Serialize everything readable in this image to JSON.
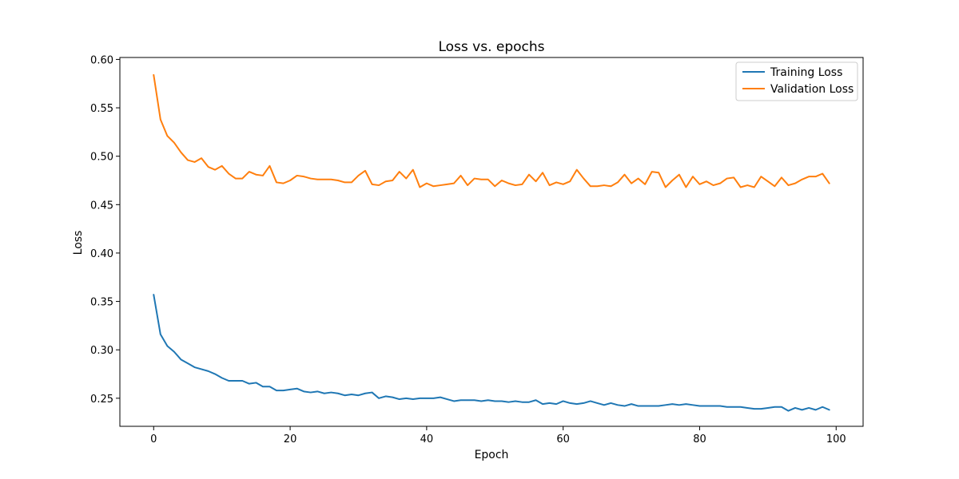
{
  "chart_data": {
    "type": "line",
    "title": "Loss vs. epochs",
    "xlabel": "Epoch",
    "ylabel": "Loss",
    "xlim": [
      -4.95,
      103.95
    ],
    "ylim": [
      0.221,
      0.602
    ],
    "xticks": [
      0,
      20,
      40,
      60,
      80,
      100
    ],
    "yticks": [
      0.25,
      0.3,
      0.35,
      0.4,
      0.45,
      0.5,
      0.55,
      0.6
    ],
    "grid": false,
    "legend_position": "top-right",
    "x": [
      0,
      1,
      2,
      3,
      4,
      5,
      6,
      7,
      8,
      9,
      10,
      11,
      12,
      13,
      14,
      15,
      16,
      17,
      18,
      19,
      20,
      21,
      22,
      23,
      24,
      25,
      26,
      27,
      28,
      29,
      30,
      31,
      32,
      33,
      34,
      35,
      36,
      37,
      38,
      39,
      40,
      41,
      42,
      43,
      44,
      45,
      46,
      47,
      48,
      49,
      50,
      51,
      52,
      53,
      54,
      55,
      56,
      57,
      58,
      59,
      60,
      61,
      62,
      63,
      64,
      65,
      66,
      67,
      68,
      69,
      70,
      71,
      72,
      73,
      74,
      75,
      76,
      77,
      78,
      79,
      80,
      81,
      82,
      83,
      84,
      85,
      86,
      87,
      88,
      89,
      90,
      91,
      92,
      93,
      94,
      95,
      96,
      97,
      98,
      99
    ],
    "series": [
      {
        "name": "Training Loss",
        "color": "#1f77b4",
        "values": [
          0.357,
          0.316,
          0.304,
          0.298,
          0.29,
          0.286,
          0.282,
          0.28,
          0.278,
          0.275,
          0.271,
          0.268,
          0.268,
          0.268,
          0.265,
          0.266,
          0.262,
          0.262,
          0.258,
          0.258,
          0.259,
          0.26,
          0.257,
          0.256,
          0.257,
          0.255,
          0.256,
          0.255,
          0.253,
          0.254,
          0.253,
          0.255,
          0.256,
          0.25,
          0.252,
          0.251,
          0.249,
          0.25,
          0.249,
          0.25,
          0.25,
          0.25,
          0.251,
          0.249,
          0.247,
          0.248,
          0.248,
          0.248,
          0.247,
          0.248,
          0.247,
          0.247,
          0.246,
          0.247,
          0.246,
          0.246,
          0.248,
          0.244,
          0.245,
          0.244,
          0.247,
          0.245,
          0.244,
          0.245,
          0.247,
          0.245,
          0.243,
          0.245,
          0.243,
          0.242,
          0.244,
          0.242,
          0.242,
          0.242,
          0.242,
          0.243,
          0.244,
          0.243,
          0.244,
          0.243,
          0.242,
          0.242,
          0.242,
          0.242,
          0.241,
          0.241,
          0.241,
          0.24,
          0.239,
          0.239,
          0.24,
          0.241,
          0.241,
          0.237,
          0.24,
          0.238,
          0.24,
          0.238,
          0.241,
          0.238
        ]
      },
      {
        "name": "Validation Loss",
        "color": "#ff7f0e",
        "values": [
          0.584,
          0.538,
          0.521,
          0.514,
          0.504,
          0.496,
          0.494,
          0.498,
          0.489,
          0.486,
          0.49,
          0.482,
          0.477,
          0.477,
          0.484,
          0.481,
          0.48,
          0.49,
          0.473,
          0.472,
          0.475,
          0.48,
          0.479,
          0.477,
          0.476,
          0.476,
          0.476,
          0.475,
          0.473,
          0.473,
          0.48,
          0.485,
          0.471,
          0.47,
          0.474,
          0.475,
          0.484,
          0.477,
          0.486,
          0.468,
          0.472,
          0.469,
          0.47,
          0.471,
          0.472,
          0.48,
          0.47,
          0.477,
          0.476,
          0.476,
          0.469,
          0.475,
          0.472,
          0.47,
          0.471,
          0.481,
          0.474,
          0.483,
          0.47,
          0.473,
          0.471,
          0.474,
          0.486,
          0.477,
          0.469,
          0.469,
          0.47,
          0.469,
          0.473,
          0.481,
          0.472,
          0.477,
          0.471,
          0.484,
          0.483,
          0.468,
          0.475,
          0.481,
          0.468,
          0.479,
          0.471,
          0.474,
          0.47,
          0.472,
          0.477,
          0.478,
          0.468,
          0.47,
          0.468,
          0.479,
          0.474,
          0.469,
          0.478,
          0.47,
          0.472,
          0.476,
          0.479,
          0.479,
          0.482,
          0.472
        ]
      }
    ]
  }
}
